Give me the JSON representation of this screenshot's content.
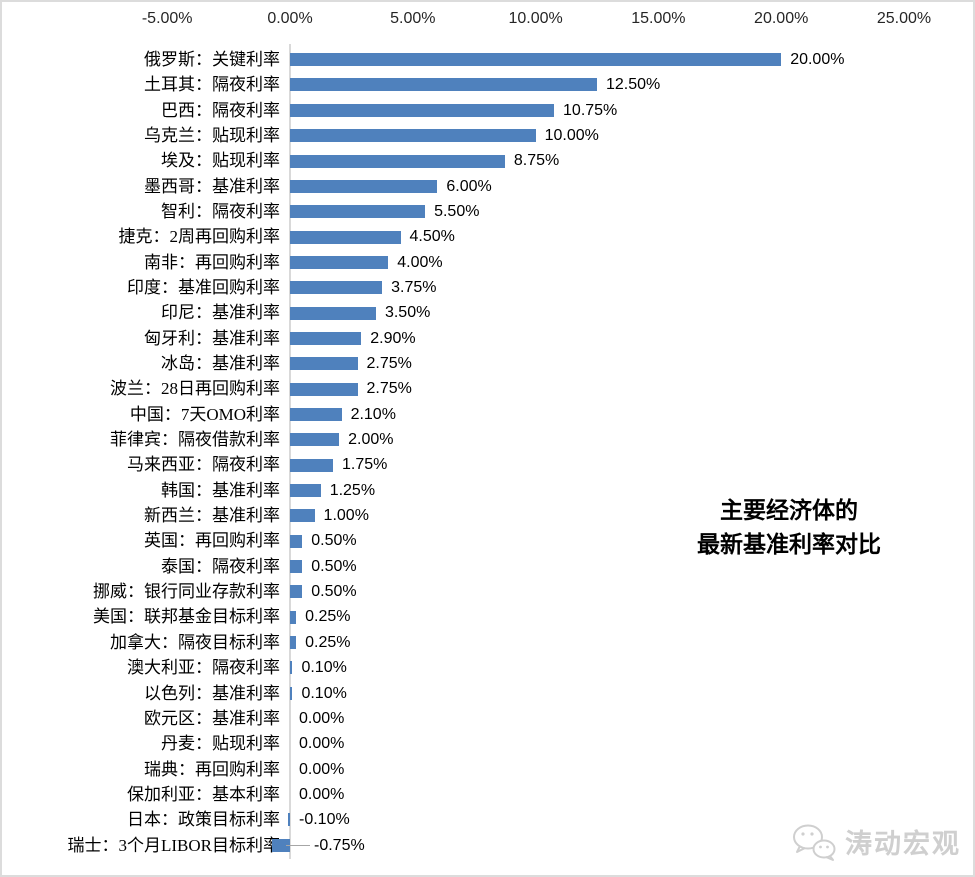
{
  "chart_data": {
    "type": "bar",
    "orientation": "horizontal",
    "title": "主要经济体的最新基准利率对比",
    "title_lines": [
      "主要经济体的",
      "最新基准利率对比"
    ],
    "xlabel": "",
    "ylabel": "",
    "xlim": [
      -5,
      25
    ],
    "grid": false,
    "legend": false,
    "bar_color": "#4F81BD",
    "axis_color": "#D9D9D9",
    "x_ticks": [
      {
        "label": "-5.00%",
        "value": -5
      },
      {
        "label": "0.00%",
        "value": 0
      },
      {
        "label": "5.00%",
        "value": 5
      },
      {
        "label": "10.00%",
        "value": 10
      },
      {
        "label": "15.00%",
        "value": 15
      },
      {
        "label": "20.00%",
        "value": 20
      },
      {
        "label": "25.00%",
        "value": 25
      }
    ],
    "categories": [
      "俄罗斯：关键利率",
      "土耳其：隔夜利率",
      "巴西：隔夜利率",
      "乌克兰：贴现利率",
      "埃及：贴现利率",
      "墨西哥：基准利率",
      "智利：隔夜利率",
      "捷克：2周再回购利率",
      "南非：再回购利率",
      "印度：基准回购利率",
      "印尼：基准利率",
      "匈牙利：基准利率",
      "冰岛：基准利率",
      "波兰：28日再回购利率",
      "中国：7天OMO利率",
      "菲律宾：隔夜借款利率",
      "马来西亚：隔夜利率",
      "韩国：基准利率",
      "新西兰：基准利率",
      "英国：再回购利率",
      "泰国：隔夜利率",
      "挪威：银行同业存款利率",
      "美国：联邦基金目标利率",
      "加拿大：隔夜目标利率",
      "澳大利亚：隔夜利率",
      "以色列：基准利率",
      "欧元区：基准利率",
      "丹麦：贴现利率",
      "瑞典：再回购利率",
      "保加利亚：基本利率",
      "日本：政策目标利率",
      "瑞士：3个月LIBOR目标利率"
    ],
    "values": [
      20.0,
      12.5,
      10.75,
      10.0,
      8.75,
      6.0,
      5.5,
      4.5,
      4.0,
      3.75,
      3.5,
      2.9,
      2.75,
      2.75,
      2.1,
      2.0,
      1.75,
      1.25,
      1.0,
      0.5,
      0.5,
      0.5,
      0.25,
      0.25,
      0.1,
      0.1,
      0.0,
      0.0,
      0.0,
      0.0,
      -0.1,
      -0.75
    ],
    "value_labels": [
      "20.00%",
      "12.50%",
      "10.75%",
      "10.00%",
      "8.75%",
      "6.00%",
      "5.50%",
      "4.50%",
      "4.00%",
      "3.75%",
      "3.50%",
      "2.90%",
      "2.75%",
      "2.75%",
      "2.10%",
      "2.00%",
      "1.75%",
      "1.25%",
      "1.00%",
      "0.50%",
      "0.50%",
      "0.50%",
      "0.25%",
      "0.25%",
      "0.10%",
      "0.10%",
      "0.00%",
      "0.00%",
      "0.00%",
      "0.00%",
      "-0.10%",
      "-0.75%"
    ]
  },
  "watermark": {
    "text": "涛动宏观",
    "icon": "wechat-icon"
  }
}
